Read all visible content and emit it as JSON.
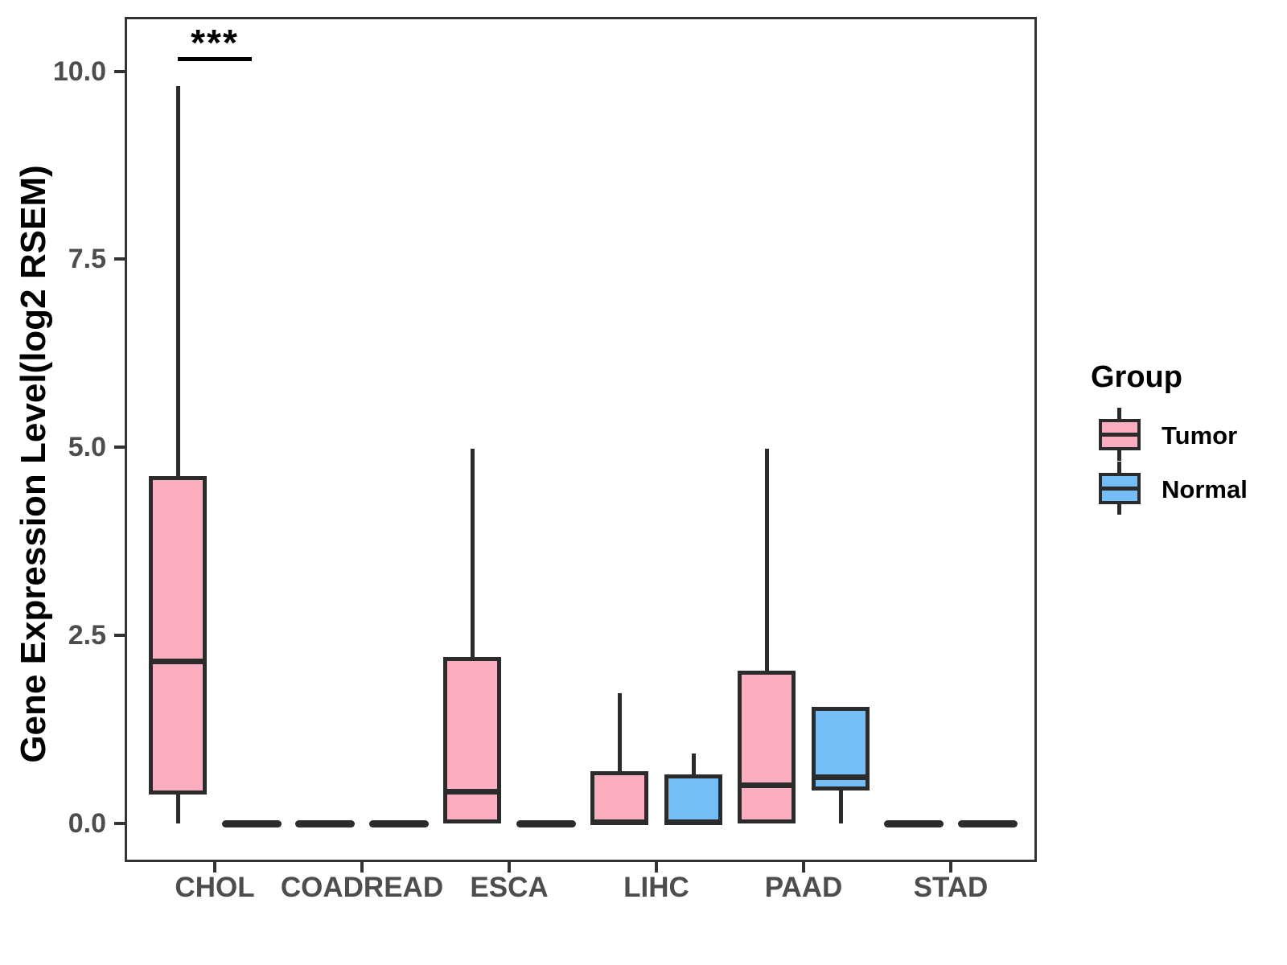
{
  "y_axis": {
    "title": "Gene Expression Level(log2 RSEM)",
    "ticks": [
      {
        "label": "10.0",
        "value": 10.0
      },
      {
        "label": "7.5",
        "value": 7.5
      },
      {
        "label": "5.0",
        "value": 5.0
      },
      {
        "label": "2.5",
        "value": 2.5
      },
      {
        "label": "0.0",
        "value": 0.0
      }
    ]
  },
  "x_axis": {
    "categories": [
      "CHOL",
      "COADREAD",
      "ESCA",
      "LIHC",
      "PAAD",
      "STAD"
    ]
  },
  "legend": {
    "title": "Group",
    "items": [
      {
        "label": "Tumor",
        "color": "#FBAEC0"
      },
      {
        "label": "Normal",
        "color": "#74BDF5"
      }
    ]
  },
  "significance": {
    "label": "***",
    "category": "CHOL"
  },
  "colors": {
    "tumor_fill": "#FBAEC0",
    "normal_fill": "#74BDF5",
    "line": "#2b2b2b",
    "panel_border": "#333333",
    "axis_text": "#4d4d4d"
  },
  "chart_data": {
    "type": "box",
    "title": "",
    "xlabel": "",
    "ylabel": "Gene Expression Level(log2 RSEM)",
    "ylim": [
      -0.5,
      10.7
    ],
    "grid": false,
    "legend_position": "right",
    "categories": [
      "CHOL",
      "COADREAD",
      "ESCA",
      "LIHC",
      "PAAD",
      "STAD"
    ],
    "series": [
      {
        "name": "Tumor",
        "stats": [
          {
            "min": 0,
            "q1": 0.39,
            "med": 2.16,
            "q3": 4.62,
            "max": 9.8
          },
          {
            "min": 0,
            "q1": 0,
            "med": 0,
            "q3": 0,
            "max": 0
          },
          {
            "min": 0,
            "q1": 0,
            "med": 0.43,
            "q3": 2.21,
            "max": 4.98
          },
          {
            "min": 0,
            "q1": 0,
            "med": 0.02,
            "q3": 0.69,
            "max": 1.73
          },
          {
            "min": 0,
            "q1": 0,
            "med": 0.51,
            "q3": 2.03,
            "max": 4.98
          },
          {
            "min": 0,
            "q1": 0,
            "med": 0,
            "q3": 0,
            "max": 0
          }
        ]
      },
      {
        "name": "Normal",
        "stats": [
          {
            "min": 0,
            "q1": 0,
            "med": 0,
            "q3": 0,
            "max": 0
          },
          {
            "min": 0,
            "q1": 0,
            "med": 0,
            "q3": 0,
            "max": 0
          },
          {
            "min": 0,
            "q1": 0,
            "med": 0,
            "q3": 0,
            "max": 0
          },
          {
            "min": 0,
            "q1": 0,
            "med": 0.02,
            "q3": 0.65,
            "max": 0.93
          },
          {
            "min": 0,
            "q1": 0.44,
            "med": 0.62,
            "q3": 1.55,
            "max": 1.55
          },
          {
            "min": 0,
            "q1": 0,
            "med": 0,
            "q3": 0,
            "max": 0
          }
        ]
      }
    ],
    "annotations": [
      {
        "text": "***",
        "category": "CHOL",
        "between": [
          "Tumor",
          "Normal"
        ]
      }
    ]
  }
}
